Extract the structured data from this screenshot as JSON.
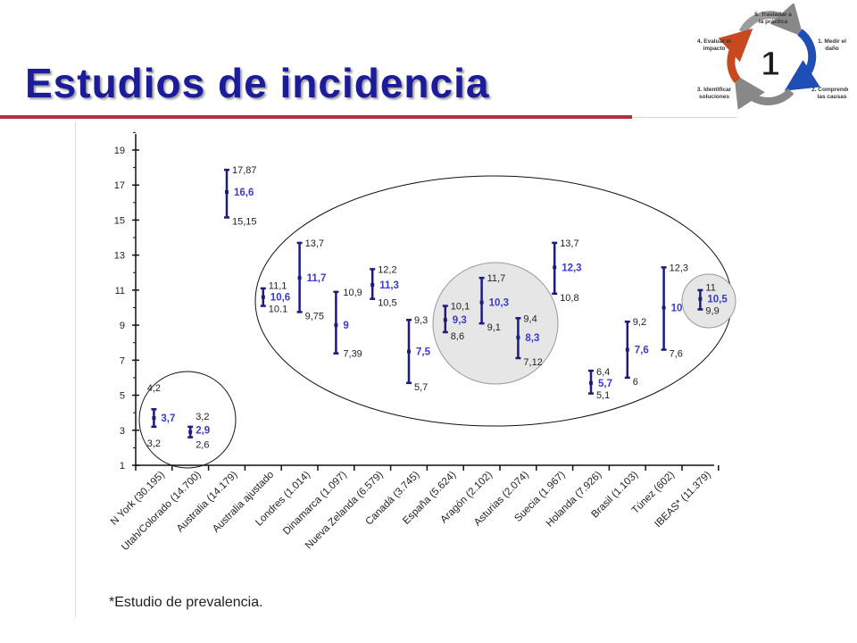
{
  "title": "Estudios de incidencia",
  "footnote": "*Estudio de prevalencia.",
  "cycle": {
    "number": "1",
    "steps": [
      {
        "id": "step5",
        "lines": [
          "5. Trasladar a",
          "la práctica"
        ]
      },
      {
        "id": "step1",
        "lines": [
          "1. Medir el",
          "daño"
        ]
      },
      {
        "id": "step2",
        "lines": [
          "2. Comprender",
          "las causas"
        ]
      },
      {
        "id": "step3",
        "lines": [
          "3. Identificar",
          "soluciones"
        ]
      },
      {
        "id": "step4",
        "lines": [
          "4. Evaluar el",
          "impacto"
        ]
      }
    ]
  },
  "chart_data": {
    "type": "error-bar",
    "title": "",
    "xlabel": "",
    "ylabel": "",
    "ylim": [
      1,
      20
    ],
    "yticks": [
      1,
      3,
      5,
      7,
      9,
      11,
      13,
      15,
      17,
      19
    ],
    "grid": false,
    "colors": {
      "bar": "#1c1c7e",
      "mean_label": "#3a3ad0",
      "bound_label": "#222222"
    },
    "categories": [
      "N York (30.195)",
      "Utah/Colorado (14.700)",
      "Australia (14.179)",
      "Australia ajustado",
      "Londres (1.014)",
      "Dinamarca (1.097)",
      "Nueva Zelanda (6.579)",
      "Canadá (3.745)",
      "España (5.624)",
      "Aragón (2.102)",
      "Asturias (2.074)",
      "Suecia (1.967)",
      "Holanda (7.926)",
      "Brasil (1.103)",
      "Túnez (602)",
      "IBEAS* (11.379)"
    ],
    "points": [
      {
        "category": "N York (30.195)",
        "mean": 3.7,
        "low": 3.2,
        "high": 4.2,
        "mean_label": "3,7",
        "low_label": "3,2",
        "high_label": "4,2"
      },
      {
        "category": "Utah/Colorado (14.700)",
        "mean": 2.9,
        "low": 2.6,
        "high": 3.2,
        "mean_label": "2,9",
        "low_label": "2,6",
        "high_label": "3,2"
      },
      {
        "category": "Australia (14.179)",
        "mean": 16.6,
        "low": 15.15,
        "high": 17.87,
        "mean_label": "16,6",
        "low_label": "15,15",
        "high_label": "17,87"
      },
      {
        "category": "Australia ajustado",
        "mean": 10.6,
        "low": 10.1,
        "high": 11.1,
        "mean_label": "10,6",
        "low_label": "10.1",
        "high_label": "11,1"
      },
      {
        "category": "Londres (1.014)",
        "mean": 11.7,
        "low": 9.75,
        "high": 13.7,
        "mean_label": "11,7",
        "low_label": "9,75",
        "high_label": "13,7"
      },
      {
        "category": "Dinamarca (1.097)",
        "mean": 9,
        "low": 7.39,
        "high": 10.9,
        "mean_label": "9",
        "low_label": "7,39",
        "high_label": "10,9"
      },
      {
        "category": "Nueva Zelanda (6.579)",
        "mean": 11.3,
        "low": 10.5,
        "high": 12.2,
        "mean_label": "11,3",
        "low_label": "10,5",
        "high_label": "12,2"
      },
      {
        "category": "Canadá (3.745)",
        "mean": 7.5,
        "low": 5.7,
        "high": 9.3,
        "mean_label": "7,5",
        "low_label": "5,7",
        "high_label": "9,3"
      },
      {
        "category": "España (5.624)",
        "mean": 9.3,
        "low": 8.6,
        "high": 10.1,
        "mean_label": "9,3",
        "low_label": "8,6",
        "high_label": "10,1"
      },
      {
        "category": "Aragón (2.102)",
        "mean": 10.3,
        "low": 9.1,
        "high": 11.7,
        "mean_label": "10,3",
        "low_label": "9,1",
        "high_label": "11,7"
      },
      {
        "category": "Asturias (2.074)",
        "mean": 8.3,
        "low": 7.12,
        "high": 9.4,
        "mean_label": "8,3",
        "low_label": "7,12",
        "high_label": "9,4"
      },
      {
        "category": "Suecia (1.967)",
        "mean": 12.3,
        "low": 10.8,
        "high": 13.7,
        "mean_label": "12,3",
        "low_label": "10,8",
        "high_label": "13,7"
      },
      {
        "category": "Holanda (7.926)",
        "mean": 5.7,
        "low": 5.1,
        "high": 6.4,
        "mean_label": "5,7",
        "low_label": "5,1",
        "high_label": "6,4"
      },
      {
        "category": "Brasil (1.103)",
        "mean": 7.6,
        "low": 6,
        "high": 9.2,
        "mean_label": "7,6",
        "low_label": "6",
        "high_label": "9,2"
      },
      {
        "category": "Túnez (602)",
        "mean": 10,
        "low": 7.6,
        "high": 12.3,
        "mean_label": "10",
        "low_label": "7,6",
        "high_label": "12,3"
      },
      {
        "category": "IBEAS* (11.379)",
        "mean": 10.5,
        "low": 9.9,
        "high": 11,
        "mean_label": "10,5",
        "low_label": "9,9",
        "high_label": "11"
      }
    ]
  }
}
